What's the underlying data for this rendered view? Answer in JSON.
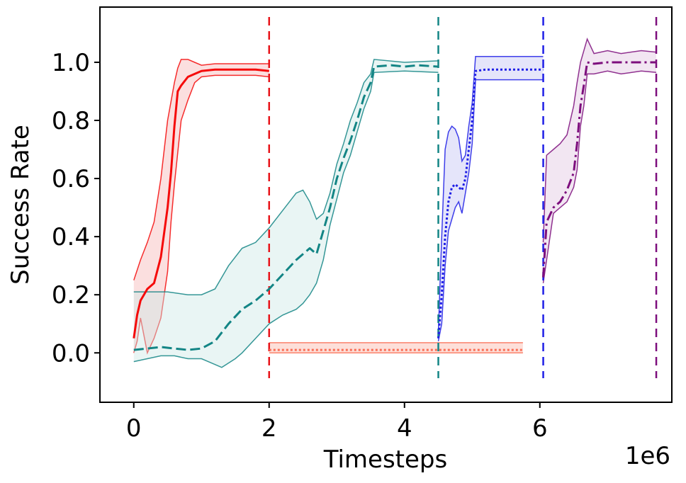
{
  "chart_data": {
    "type": "line",
    "title": "",
    "xlabel": "Timesteps",
    "ylabel": "Success Rate",
    "x_offset_label": "1e6",
    "xlim": [
      -0.5,
      7.95
    ],
    "ylim": [
      -0.17,
      1.19
    ],
    "grid": false,
    "legend": "none",
    "x_ticks": [
      0,
      2,
      4,
      6
    ],
    "x_tick_labels": [
      "0",
      "2",
      "4",
      "6"
    ],
    "y_ticks": [
      0.0,
      0.2,
      0.4,
      0.6,
      0.8,
      1.0
    ],
    "y_tick_labels": [
      "0.0",
      "0.2",
      "0.4",
      "0.6",
      "0.8",
      "1.0"
    ],
    "vlines": [
      {
        "x": 2.0,
        "color": "#e8141a"
      },
      {
        "x": 4.5,
        "color": "#138585"
      },
      {
        "x": 6.05,
        "color": "#1f1fe6"
      },
      {
        "x": 7.72,
        "color": "#7d0e7d"
      }
    ],
    "series": [
      {
        "color": "#f50a0a",
        "fill": "#f7b8b8",
        "linestyle": "solid",
        "width": 3,
        "mean": [
          [
            0.0,
            0.05
          ],
          [
            0.05,
            0.13
          ],
          [
            0.1,
            0.18
          ],
          [
            0.15,
            0.2
          ],
          [
            0.2,
            0.22
          ],
          [
            0.3,
            0.24
          ],
          [
            0.4,
            0.33
          ],
          [
            0.5,
            0.5
          ],
          [
            0.55,
            0.62
          ],
          [
            0.6,
            0.78
          ],
          [
            0.65,
            0.9
          ],
          [
            0.7,
            0.92
          ],
          [
            0.8,
            0.95
          ],
          [
            0.9,
            0.96
          ],
          [
            1.0,
            0.97
          ],
          [
            1.2,
            0.975
          ],
          [
            1.5,
            0.975
          ],
          [
            1.8,
            0.975
          ],
          [
            2.0,
            0.97
          ]
        ],
        "upper": [
          [
            0.0,
            0.25
          ],
          [
            0.1,
            0.32
          ],
          [
            0.2,
            0.38
          ],
          [
            0.3,
            0.45
          ],
          [
            0.4,
            0.6
          ],
          [
            0.5,
            0.8
          ],
          [
            0.6,
            0.93
          ],
          [
            0.65,
            0.98
          ],
          [
            0.7,
            1.01
          ],
          [
            0.8,
            1.01
          ],
          [
            0.9,
            1.0
          ],
          [
            1.0,
            0.99
          ],
          [
            1.2,
            0.995
          ],
          [
            1.5,
            0.995
          ],
          [
            1.8,
            0.995
          ],
          [
            2.0,
            0.995
          ]
        ],
        "lower": [
          [
            0.0,
            0.0
          ],
          [
            0.05,
            0.04
          ],
          [
            0.1,
            0.12
          ],
          [
            0.2,
            0.0
          ],
          [
            0.3,
            0.05
          ],
          [
            0.4,
            0.12
          ],
          [
            0.5,
            0.28
          ],
          [
            0.55,
            0.45
          ],
          [
            0.6,
            0.58
          ],
          [
            0.7,
            0.8
          ],
          [
            0.8,
            0.87
          ],
          [
            0.9,
            0.93
          ],
          [
            1.0,
            0.95
          ],
          [
            1.2,
            0.955
          ],
          [
            1.5,
            0.955
          ],
          [
            1.8,
            0.955
          ],
          [
            2.0,
            0.95
          ]
        ]
      },
      {
        "color": "#138585",
        "fill": "#cfe9e7",
        "linestyle": "dashed",
        "width": 3,
        "mean": [
          [
            0.0,
            0.01
          ],
          [
            0.2,
            0.015
          ],
          [
            0.4,
            0.02
          ],
          [
            0.6,
            0.015
          ],
          [
            0.8,
            0.01
          ],
          [
            1.0,
            0.015
          ],
          [
            1.2,
            0.04
          ],
          [
            1.4,
            0.1
          ],
          [
            1.6,
            0.15
          ],
          [
            1.8,
            0.18
          ],
          [
            2.0,
            0.22
          ],
          [
            2.2,
            0.27
          ],
          [
            2.4,
            0.32
          ],
          [
            2.6,
            0.36
          ],
          [
            2.7,
            0.34
          ],
          [
            2.8,
            0.42
          ],
          [
            2.9,
            0.5
          ],
          [
            3.0,
            0.6
          ],
          [
            3.1,
            0.67
          ],
          [
            3.2,
            0.73
          ],
          [
            3.3,
            0.8
          ],
          [
            3.4,
            0.88
          ],
          [
            3.5,
            0.93
          ],
          [
            3.55,
            0.985
          ],
          [
            3.8,
            0.99
          ],
          [
            4.0,
            0.985
          ],
          [
            4.2,
            0.99
          ],
          [
            4.5,
            0.985
          ]
        ],
        "upper": [
          [
            0.0,
            0.21
          ],
          [
            0.2,
            0.21
          ],
          [
            0.5,
            0.21
          ],
          [
            0.8,
            0.2
          ],
          [
            1.0,
            0.2
          ],
          [
            1.2,
            0.22
          ],
          [
            1.4,
            0.3
          ],
          [
            1.6,
            0.36
          ],
          [
            1.8,
            0.38
          ],
          [
            2.0,
            0.43
          ],
          [
            2.2,
            0.49
          ],
          [
            2.4,
            0.55
          ],
          [
            2.5,
            0.56
          ],
          [
            2.6,
            0.52
          ],
          [
            2.7,
            0.46
          ],
          [
            2.8,
            0.48
          ],
          [
            2.9,
            0.55
          ],
          [
            3.0,
            0.65
          ],
          [
            3.1,
            0.72
          ],
          [
            3.2,
            0.8
          ],
          [
            3.3,
            0.86
          ],
          [
            3.4,
            0.93
          ],
          [
            3.5,
            0.96
          ],
          [
            3.55,
            1.01
          ],
          [
            4.0,
            1.0
          ],
          [
            4.5,
            1.005
          ]
        ],
        "lower": [
          [
            0.0,
            -0.03
          ],
          [
            0.2,
            -0.02
          ],
          [
            0.4,
            -0.01
          ],
          [
            0.6,
            -0.01
          ],
          [
            0.8,
            -0.02
          ],
          [
            1.0,
            -0.02
          ],
          [
            1.2,
            -0.04
          ],
          [
            1.3,
            -0.05
          ],
          [
            1.5,
            -0.02
          ],
          [
            1.6,
            0.0
          ],
          [
            1.8,
            0.05
          ],
          [
            2.0,
            0.1
          ],
          [
            2.2,
            0.13
          ],
          [
            2.4,
            0.15
          ],
          [
            2.5,
            0.17
          ],
          [
            2.6,
            0.2
          ],
          [
            2.7,
            0.24
          ],
          [
            2.8,
            0.32
          ],
          [
            2.9,
            0.44
          ],
          [
            3.0,
            0.53
          ],
          [
            3.1,
            0.62
          ],
          [
            3.2,
            0.68
          ],
          [
            3.3,
            0.76
          ],
          [
            3.4,
            0.84
          ],
          [
            3.5,
            0.9
          ],
          [
            3.55,
            0.965
          ],
          [
            4.0,
            0.97
          ],
          [
            4.5,
            0.965
          ]
        ]
      },
      {
        "color": "#fa6e55",
        "fill": "#fab7aa",
        "linestyle": "dotted",
        "width": 3,
        "mean": [
          [
            2.0,
            0.01
          ],
          [
            3.0,
            0.01
          ],
          [
            4.0,
            0.01
          ],
          [
            5.0,
            0.01
          ],
          [
            5.75,
            0.01
          ]
        ],
        "upper": [
          [
            2.0,
            0.035
          ],
          [
            5.75,
            0.035
          ]
        ],
        "lower": [
          [
            2.0,
            0.0
          ],
          [
            5.75,
            0.0
          ]
        ]
      },
      {
        "color": "#1f1fe6",
        "fill": "#c6c6f5",
        "linestyle": "dotted",
        "width": 3,
        "mean": [
          [
            4.5,
            0.05
          ],
          [
            4.55,
            0.2
          ],
          [
            4.6,
            0.4
          ],
          [
            4.65,
            0.52
          ],
          [
            4.7,
            0.57
          ],
          [
            4.75,
            0.58
          ],
          [
            4.8,
            0.57
          ],
          [
            4.85,
            0.56
          ],
          [
            4.9,
            0.6
          ],
          [
            4.95,
            0.7
          ],
          [
            5.0,
            0.8
          ],
          [
            5.05,
            0.97
          ],
          [
            5.2,
            0.975
          ],
          [
            5.5,
            0.975
          ],
          [
            5.8,
            0.975
          ],
          [
            6.05,
            0.975
          ]
        ],
        "upper": [
          [
            4.5,
            0.07
          ],
          [
            4.55,
            0.4
          ],
          [
            4.6,
            0.7
          ],
          [
            4.65,
            0.76
          ],
          [
            4.7,
            0.78
          ],
          [
            4.75,
            0.77
          ],
          [
            4.8,
            0.74
          ],
          [
            4.85,
            0.66
          ],
          [
            4.9,
            0.68
          ],
          [
            4.95,
            0.78
          ],
          [
            5.0,
            0.86
          ],
          [
            5.05,
            1.02
          ],
          [
            5.5,
            1.02
          ],
          [
            6.05,
            1.02
          ]
        ],
        "lower": [
          [
            4.5,
            0.04
          ],
          [
            4.55,
            0.1
          ],
          [
            4.6,
            0.3
          ],
          [
            4.65,
            0.42
          ],
          [
            4.7,
            0.46
          ],
          [
            4.75,
            0.5
          ],
          [
            4.8,
            0.52
          ],
          [
            4.85,
            0.48
          ],
          [
            4.9,
            0.55
          ],
          [
            4.95,
            0.62
          ],
          [
            5.0,
            0.72
          ],
          [
            5.05,
            0.94
          ],
          [
            5.5,
            0.94
          ],
          [
            6.05,
            0.94
          ]
        ]
      },
      {
        "color": "#7d0e7d",
        "fill": "#e2c8e2",
        "linestyle": "dashdot",
        "width": 3,
        "mean": [
          [
            6.05,
            0.26
          ],
          [
            6.1,
            0.45
          ],
          [
            6.2,
            0.5
          ],
          [
            6.3,
            0.52
          ],
          [
            6.4,
            0.56
          ],
          [
            6.5,
            0.62
          ],
          [
            6.55,
            0.72
          ],
          [
            6.6,
            0.85
          ],
          [
            6.65,
            0.92
          ],
          [
            6.7,
            1.0
          ],
          [
            6.8,
            0.995
          ],
          [
            7.0,
            1.0
          ],
          [
            7.2,
            1.0
          ],
          [
            7.5,
            1.0
          ],
          [
            7.72,
            1.0
          ]
        ],
        "upper": [
          [
            6.05,
            0.38
          ],
          [
            6.1,
            0.68
          ],
          [
            6.2,
            0.7
          ],
          [
            6.3,
            0.72
          ],
          [
            6.4,
            0.75
          ],
          [
            6.5,
            0.85
          ],
          [
            6.55,
            0.93
          ],
          [
            6.6,
            1.0
          ],
          [
            6.7,
            1.08
          ],
          [
            6.8,
            1.03
          ],
          [
            7.0,
            1.04
          ],
          [
            7.2,
            1.03
          ],
          [
            7.5,
            1.04
          ],
          [
            7.72,
            1.035
          ]
        ],
        "lower": [
          [
            6.05,
            0.24
          ],
          [
            6.1,
            0.32
          ],
          [
            6.2,
            0.48
          ],
          [
            6.3,
            0.5
          ],
          [
            6.4,
            0.52
          ],
          [
            6.5,
            0.57
          ],
          [
            6.55,
            0.63
          ],
          [
            6.6,
            0.78
          ],
          [
            6.65,
            0.85
          ],
          [
            6.7,
            0.96
          ],
          [
            6.8,
            0.96
          ],
          [
            7.0,
            0.97
          ],
          [
            7.2,
            0.96
          ],
          [
            7.5,
            0.97
          ],
          [
            7.72,
            0.965
          ]
        ]
      }
    ]
  }
}
